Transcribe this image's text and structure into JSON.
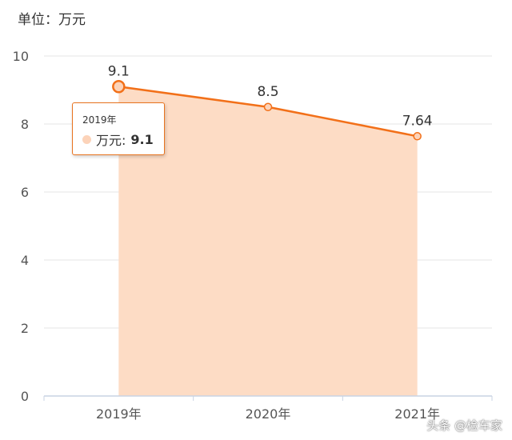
{
  "unit_label": "单位：万元",
  "tooltip": {
    "category": "2019年",
    "series_name": "万元:",
    "value": "9.1"
  },
  "watermark": "头条 @检车家",
  "colors": {
    "line": "#f27019",
    "area": "#fddcc5",
    "grid": "#e6e6e6",
    "axis": "#c9d3e3",
    "text": "#555555"
  },
  "chart_data": {
    "type": "area",
    "categories": [
      "2019年",
      "2020年",
      "2021年"
    ],
    "series": [
      {
        "name": "万元",
        "values": [
          9.1,
          8.5,
          7.64
        ]
      }
    ],
    "data_labels": [
      "9.1",
      "8.5",
      "7.64"
    ],
    "yticks": [
      "0",
      "2",
      "4",
      "6",
      "8",
      "10"
    ],
    "ylim": [
      0,
      10
    ],
    "grid": true,
    "highlighted_category": "2019年"
  }
}
